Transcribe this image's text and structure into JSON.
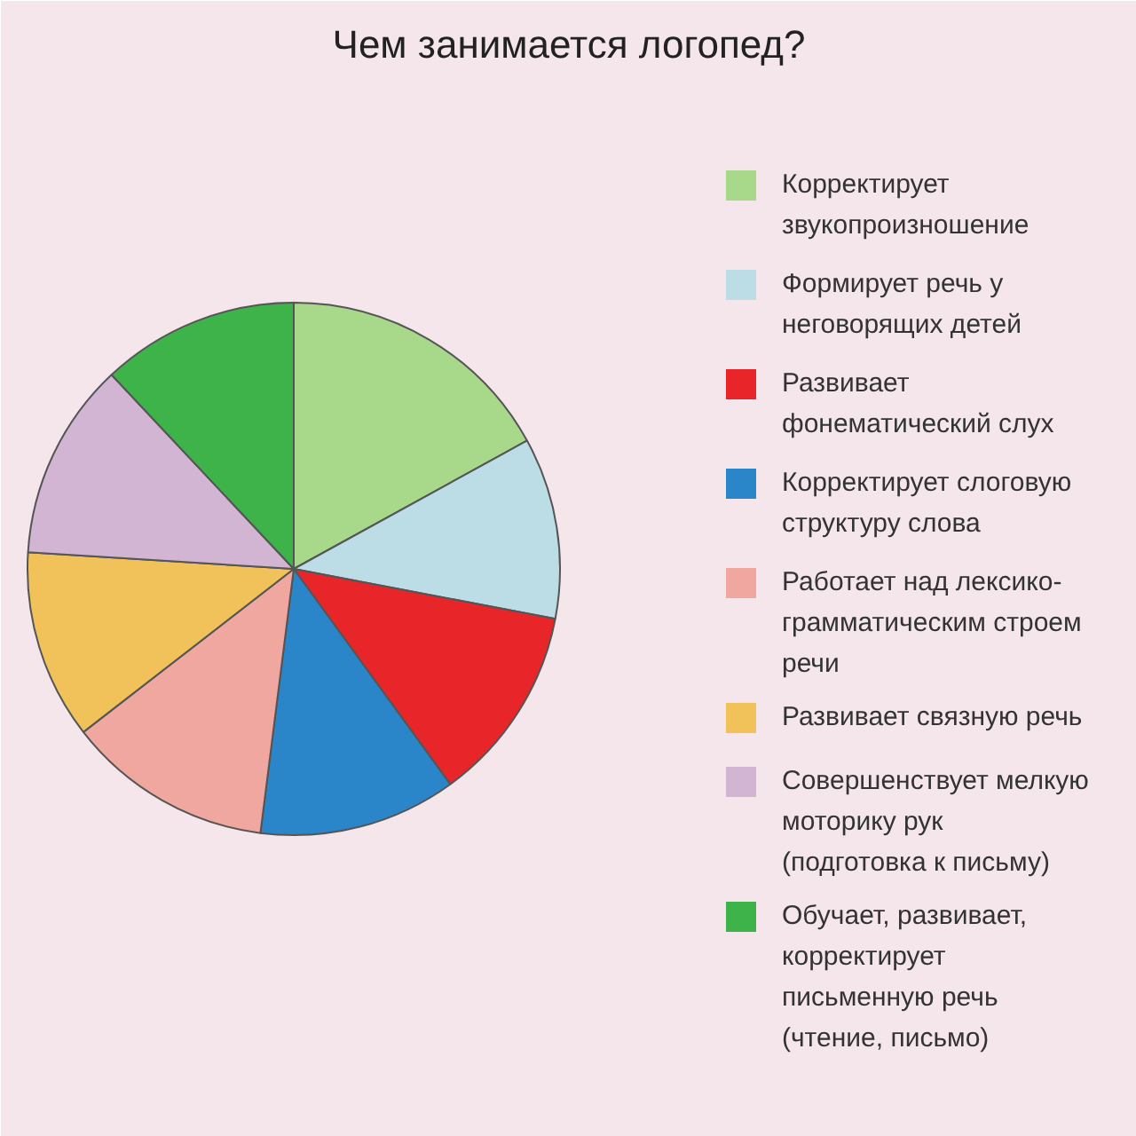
{
  "chart_data": {
    "type": "pie",
    "title": "Чем занимается логопед?",
    "categories": [
      "Корректирует звукопроизношение",
      "Формирует речь у неговорящих детей",
      "Развивает фонематический слух",
      "Корректирует слоговую структуру слова",
      "Работает над лексико-грамматическим строем речи",
      "Развивает связную речь",
      "Совершенствует мелкую моторику рук (подготовка к письму)",
      "Обучает, развивает, корректирует письменную речь (чтение, письмо)"
    ],
    "values": [
      17,
      11,
      12,
      12,
      12.5,
      11.5,
      12,
      12
    ],
    "colors": [
      "#a8d98a",
      "#bcdce6",
      "#e8262a",
      "#2a86c8",
      "#efa79f",
      "#f2c25a",
      "#d1b5d3",
      "#3db34a"
    ],
    "legend": "right"
  }
}
